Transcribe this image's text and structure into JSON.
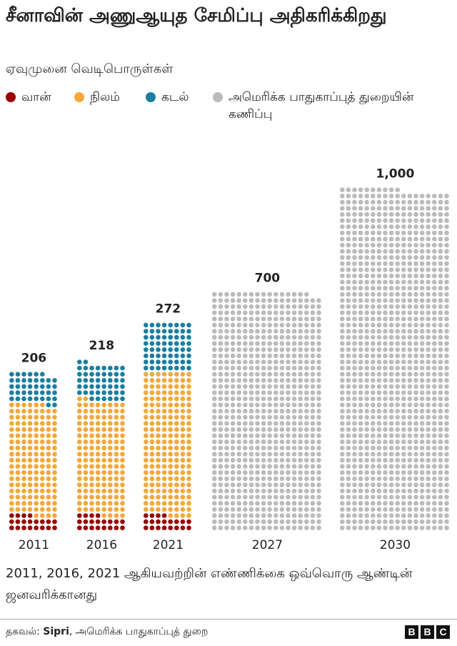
{
  "title": "சீனாவின் அணுஆயுத சேமிப்பு அதிகரிக்கிறது",
  "subtitle": "ஏவுமுனை வெடிபொருள்கள்",
  "legend": [
    {
      "key": "air",
      "label": "வான்",
      "color": "#990000"
    },
    {
      "key": "land",
      "label": "நிலம்",
      "color": "#F2A83A"
    },
    {
      "key": "sea",
      "label": "கடல்",
      "color": "#1A7EA0"
    },
    {
      "key": "estimate",
      "label": "அமெரிக்க பாதுகாப்புத் துறையின் கணிப்பு",
      "color": "#BBBBBB"
    }
  ],
  "chart_data": {
    "type": "bar",
    "subtype": "stacked dot chart (one dot = one warhead)",
    "categories": [
      "2011",
      "2016",
      "2021",
      "2027",
      "2030"
    ],
    "series": [
      {
        "name": "வான்",
        "key": "air",
        "color": "#990000",
        "values": [
          20,
          20,
          20,
          0,
          0
        ]
      },
      {
        "name": "நிலம்",
        "key": "land",
        "color": "#F2A83A",
        "values": [
          146,
          150,
          188,
          0,
          0
        ]
      },
      {
        "name": "கடல்",
        "key": "sea",
        "color": "#1A7EA0",
        "values": [
          40,
          48,
          64,
          0,
          0
        ]
      },
      {
        "name": "அமெரிக்க பாதுகாப்புத் துறையின் கணிப்பு",
        "key": "estimate",
        "color": "#BBBBBB",
        "values": [
          0,
          0,
          0,
          700,
          1000
        ]
      }
    ],
    "totals": [
      206,
      218,
      272,
      700,
      1000
    ],
    "total_labels": [
      "206",
      "218",
      "272",
      "700",
      "1,000"
    ]
  },
  "note": "2011, 2016, 2021 ஆகியவற்றின் எண்ணிக்கை ஒவ்வொரு ஆண்டின் ஜனவரிக்கானது",
  "source": {
    "prefix": "தகவல்:",
    "name": "Sipri",
    "rest": ", அமெரிக்க பாதுகாப்புத் துறை"
  },
  "brand": [
    "B",
    "B",
    "C"
  ]
}
